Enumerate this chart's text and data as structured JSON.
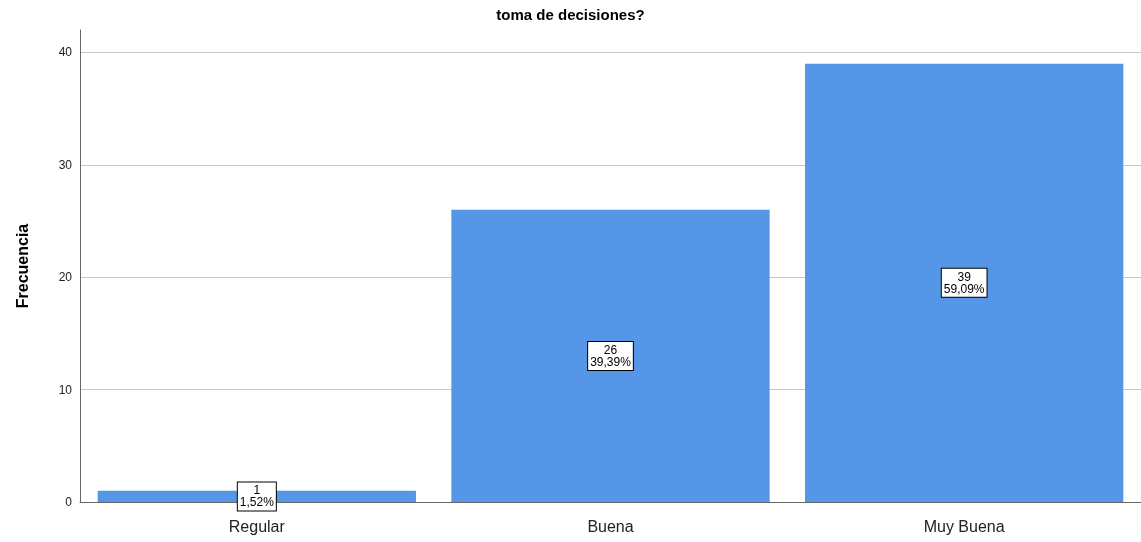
{
  "chart_data": {
    "type": "bar",
    "title": "toma de decisiones?",
    "ylabel": "Frecuencia",
    "categories": [
      "Regular",
      "Buena",
      "Muy Buena"
    ],
    "values": [
      1,
      26,
      39
    ],
    "value_labels": [
      "1\n1,52%",
      "26\n39,39%",
      "39\n59,09%"
    ],
    "color": "#5596e6",
    "ylim": [
      0,
      42
    ],
    "yticks": [
      0,
      10,
      20,
      30,
      40
    ],
    "grid": "y"
  }
}
